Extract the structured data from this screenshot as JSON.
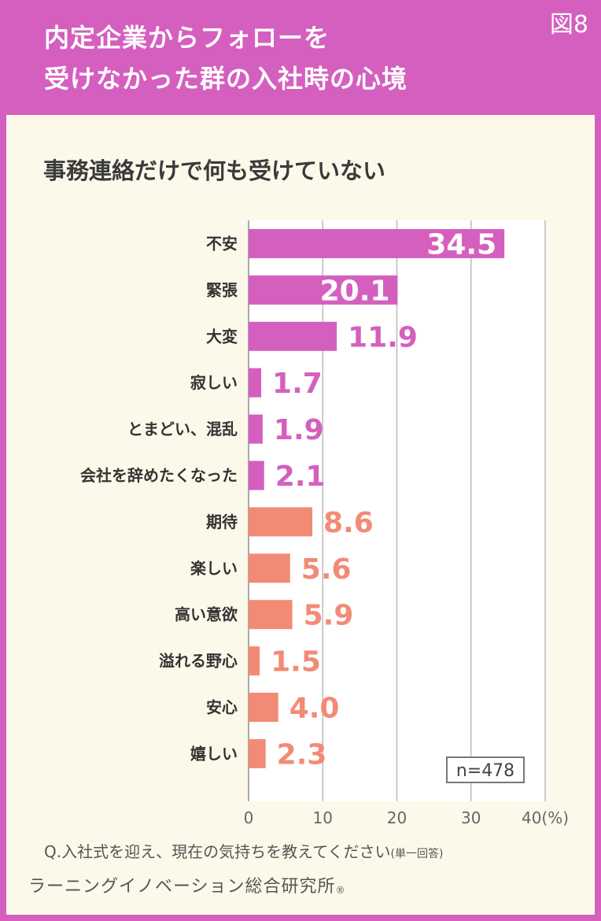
{
  "header": {
    "title_line1": "内定企業からフォローを",
    "title_line2": "受けなかった群の入社時の心境",
    "figure_label": "図8"
  },
  "colors": {
    "header_bg": "#d55fbe",
    "panel_bg": "#fdf9ea",
    "negative_bar": "#d55fbe",
    "positive_bar": "#f28b76",
    "grid": "#bbbbbb"
  },
  "chart_data": {
    "type": "bar",
    "orientation": "horizontal",
    "title": "事務連絡だけで何も受けていない",
    "categories": [
      "不安",
      "緊張",
      "大変",
      "寂しい",
      "とまどい、混乱",
      "会社を辞めたくなった",
      "期待",
      "楽しい",
      "高い意欲",
      "溢れる野心",
      "安心",
      "嬉しい"
    ],
    "values": [
      34.5,
      20.1,
      11.9,
      1.7,
      1.9,
      2.1,
      8.6,
      5.6,
      5.9,
      1.5,
      4.0,
      2.3
    ],
    "value_labels": [
      "34.5",
      "20.1",
      "11.9",
      "1.7",
      "1.9",
      "2.1",
      "8.6",
      "5.6",
      "5.9",
      "1.5",
      "4.0",
      "2.3"
    ],
    "groups": [
      "negative",
      "negative",
      "negative",
      "negative",
      "negative",
      "negative",
      "positive",
      "positive",
      "positive",
      "positive",
      "positive",
      "positive"
    ],
    "xlim": [
      0,
      40
    ],
    "xticks": [
      "0",
      "10",
      "20",
      "30",
      "40(%)"
    ],
    "grid": true,
    "sample_size": "n=478"
  },
  "footer": {
    "question": "Q.入社式を迎え、現在の気持ちを教えてください",
    "question_note": "(単一回答)",
    "source": "ラーニングイノベーション総合研究所",
    "registered_mark": "®"
  }
}
